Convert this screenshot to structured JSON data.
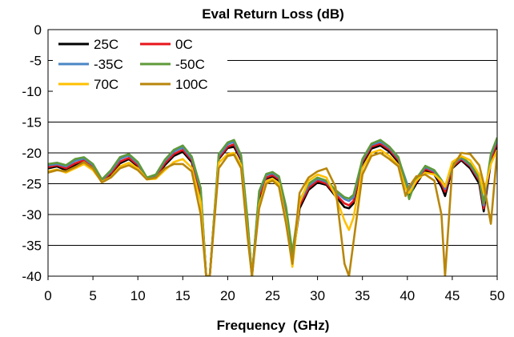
{
  "chart_data": {
    "type": "line",
    "title": "Eval Return Loss (dB)",
    "xlabel": "Frequency  (GHz)",
    "ylabel": "",
    "xlim": [
      0,
      50
    ],
    "ylim": [
      -40,
      0
    ],
    "xticks": [
      0,
      5,
      10,
      15,
      20,
      25,
      30,
      35,
      40,
      45,
      50
    ],
    "yticks": [
      0,
      -5,
      -10,
      -15,
      -20,
      -25,
      -30,
      -35,
      -40
    ],
    "grid": true,
    "legend_position": "top-left",
    "series": [
      {
        "name": "25C",
        "color": "#000000",
        "x": [
          0,
          1,
          2,
          3,
          4,
          5,
          6,
          7,
          8,
          9,
          10,
          11,
          12,
          13,
          14,
          15,
          16,
          17,
          17.6,
          18,
          19,
          20,
          20.7,
          21.5,
          22.2,
          22.7,
          23.5,
          24.3,
          25,
          25.7,
          26.5,
          27.2,
          28,
          29,
          30,
          31,
          32,
          33,
          33.5,
          34,
          35,
          36,
          37,
          38,
          39,
          39.8,
          40.2,
          41,
          42,
          43,
          43.8,
          44.2,
          45,
          46,
          47,
          48,
          48.5,
          49.3,
          50
        ],
        "y": [
          -22.5,
          -22.2,
          -22.8,
          -22.0,
          -21.5,
          -22.5,
          -24.6,
          -23.6,
          -21.7,
          -21.0,
          -22.2,
          -24.2,
          -24.0,
          -22.0,
          -20.5,
          -19.8,
          -21.5,
          -27.0,
          -40.0,
          -40.0,
          -21.0,
          -19.2,
          -19.0,
          -21.2,
          -32.0,
          -40.0,
          -27.5,
          -24.2,
          -23.8,
          -24.5,
          -30.0,
          -37.5,
          -29.0,
          -26.0,
          -24.8,
          -25.2,
          -27.0,
          -28.8,
          -29.0,
          -28.2,
          -21.8,
          -19.3,
          -18.8,
          -19.8,
          -21.5,
          -25.0,
          -27.0,
          -25.0,
          -22.8,
          -23.5,
          -25.5,
          -27.0,
          -22.5,
          -21.2,
          -22.5,
          -25.0,
          -29.5,
          -21.5,
          -18.8
        ]
      },
      {
        "name": "0C",
        "color": "#e8141c",
        "x": [
          0,
          1,
          2,
          3,
          4,
          5,
          6,
          7,
          8,
          9,
          10,
          11,
          12,
          13,
          14,
          15,
          16,
          17,
          17.6,
          18,
          19,
          20,
          20.7,
          21.5,
          22.2,
          22.7,
          23.5,
          24.3,
          25,
          25.7,
          26.5,
          27.2,
          28,
          29,
          30,
          31,
          32,
          33,
          33.5,
          34,
          35,
          36,
          37,
          38,
          39,
          39.8,
          40.2,
          41,
          42,
          43,
          43.8,
          44.2,
          45,
          46,
          47,
          48,
          48.5,
          49.3,
          50
        ],
        "y": [
          -22.3,
          -22.0,
          -22.5,
          -21.7,
          -21.2,
          -22.3,
          -24.5,
          -23.3,
          -21.4,
          -20.8,
          -22.0,
          -24.2,
          -23.8,
          -21.7,
          -20.2,
          -19.5,
          -21.2,
          -26.5,
          -40.0,
          -40.0,
          -20.8,
          -19.0,
          -18.6,
          -21.0,
          -31.5,
          -40.0,
          -27.0,
          -24.0,
          -23.6,
          -24.3,
          -29.5,
          -37.0,
          -28.5,
          -25.7,
          -24.5,
          -25.0,
          -26.7,
          -28.2,
          -28.5,
          -27.8,
          -21.5,
          -19.0,
          -18.5,
          -19.5,
          -21.2,
          -24.6,
          -26.5,
          -24.7,
          -22.6,
          -23.2,
          -25.0,
          -26.3,
          -22.3,
          -21.0,
          -22.2,
          -24.5,
          -29.0,
          -21.0,
          -18.3
        ]
      },
      {
        "name": "-35C",
        "color": "#4a86c5",
        "x": [
          0,
          1,
          2,
          3,
          4,
          5,
          6,
          7,
          8,
          9,
          10,
          11,
          12,
          13,
          14,
          15,
          16,
          17,
          17.6,
          18,
          19,
          20,
          20.7,
          21.5,
          22.2,
          22.7,
          23.5,
          24.3,
          25,
          25.7,
          26.5,
          27.2,
          28,
          29,
          30,
          31,
          32,
          33,
          33.5,
          34,
          35,
          36,
          37,
          38,
          39,
          39.8,
          40.2,
          41,
          42,
          43,
          43.8,
          44.2,
          45,
          46,
          47,
          48,
          48.5,
          49.3,
          50
        ],
        "y": [
          -22.0,
          -21.8,
          -22.2,
          -21.3,
          -20.9,
          -22.0,
          -24.4,
          -23.0,
          -21.0,
          -20.4,
          -21.7,
          -24.1,
          -23.6,
          -21.3,
          -19.8,
          -19.1,
          -20.9,
          -26.0,
          -40.0,
          -40.0,
          -20.5,
          -18.6,
          -18.2,
          -20.7,
          -31.0,
          -40.0,
          -26.5,
          -23.6,
          -23.3,
          -24.0,
          -29.0,
          -36.5,
          -28.0,
          -25.3,
          -24.2,
          -24.7,
          -26.3,
          -27.5,
          -27.8,
          -27.2,
          -21.2,
          -18.7,
          -18.2,
          -19.2,
          -20.9,
          -24.3,
          -26.0,
          -24.4,
          -22.3,
          -23.0,
          -24.6,
          -25.8,
          -22.0,
          -20.8,
          -22.0,
          -24.2,
          -28.5,
          -20.5,
          -17.8
        ]
      },
      {
        "name": "-50C",
        "color": "#5f9a3a",
        "x": [
          0,
          1,
          2,
          3,
          4,
          5,
          6,
          7,
          8,
          9,
          10,
          11,
          12,
          13,
          14,
          15,
          16,
          17,
          17.6,
          18,
          19,
          20,
          20.7,
          21.5,
          22.2,
          22.7,
          23.5,
          24.3,
          25,
          25.7,
          26.5,
          27.2,
          28,
          29,
          30,
          31,
          32,
          33,
          33.5,
          34,
          35,
          36,
          37,
          38,
          39,
          39.8,
          40.2,
          41,
          42,
          43,
          43.8,
          44.2,
          45,
          46,
          47,
          48,
          48.5,
          49.3,
          50
        ],
        "y": [
          -21.8,
          -21.6,
          -22.0,
          -21.0,
          -20.7,
          -21.8,
          -24.3,
          -22.8,
          -20.7,
          -20.2,
          -21.5,
          -24.0,
          -23.5,
          -21.1,
          -19.5,
          -18.8,
          -20.6,
          -25.7,
          -40.0,
          -40.0,
          -20.2,
          -18.3,
          -17.9,
          -20.4,
          -30.7,
          -40.0,
          -26.2,
          -23.4,
          -23.1,
          -23.8,
          -28.7,
          -36.2,
          -27.7,
          -25.0,
          -24.0,
          -24.5,
          -26.0,
          -27.2,
          -27.4,
          -26.8,
          -21.0,
          -18.5,
          -17.9,
          -19.0,
          -20.7,
          -24.7,
          -27.5,
          -24.2,
          -22.1,
          -22.8,
          -24.4,
          -25.5,
          -21.8,
          -20.6,
          -21.8,
          -24.0,
          -28.2,
          -20.2,
          -17.5
        ]
      },
      {
        "name": "70C",
        "color": "#ffc000",
        "x": [
          0,
          1,
          2,
          3,
          4,
          5,
          6,
          7,
          8,
          9,
          10,
          11,
          12,
          13,
          14,
          15,
          16,
          17,
          17.6,
          18,
          19,
          20,
          20.7,
          21.5,
          22.2,
          22.7,
          23.5,
          24.3,
          25,
          25.7,
          26.5,
          27.2,
          28,
          29,
          30,
          31,
          32,
          33,
          33.5,
          34,
          35,
          36,
          37,
          38,
          39,
          39.8,
          40.2,
          41,
          42,
          43,
          43.8,
          44.2,
          45,
          46,
          47,
          48,
          48.5,
          49.3,
          50
        ],
        "y": [
          -23.0,
          -22.7,
          -23.2,
          -22.5,
          -21.8,
          -22.8,
          -24.7,
          -23.9,
          -22.2,
          -21.6,
          -22.5,
          -24.3,
          -24.2,
          -22.8,
          -21.5,
          -21.0,
          -22.4,
          -28.0,
          -40.0,
          -40.0,
          -21.6,
          -20.2,
          -20.0,
          -22.0,
          -33.0,
          -40.0,
          -28.5,
          -24.6,
          -24.2,
          -25.0,
          -31.0,
          -38.5,
          -28.0,
          -24.5,
          -23.5,
          -24.0,
          -27.0,
          -31.0,
          -32.5,
          -30.5,
          -22.5,
          -20.0,
          -19.5,
          -20.5,
          -22.0,
          -25.8,
          -26.5,
          -24.5,
          -23.2,
          -23.5,
          -24.6,
          -25.5,
          -21.5,
          -20.5,
          -21.2,
          -23.5,
          -26.5,
          -21.8,
          -19.5
        ]
      },
      {
        "name": "100C",
        "color": "#b8860b",
        "x": [
          0,
          1,
          2,
          3,
          4,
          5,
          6,
          7,
          8,
          9,
          10,
          11,
          12,
          13,
          14,
          15,
          16,
          17,
          17.6,
          18,
          19,
          20,
          20.7,
          21.5,
          22.2,
          22.7,
          23.5,
          24.3,
          25,
          25.7,
          26.5,
          27.2,
          28,
          29,
          30,
          31,
          32,
          33,
          33.5,
          34,
          35,
          36,
          37,
          38,
          39,
          39.8,
          40.2,
          41,
          42,
          43,
          43.8,
          44.2,
          45,
          46,
          47,
          48,
          48.5,
          49.3,
          50
        ],
        "y": [
          -23.2,
          -22.8,
          -23.0,
          -22.3,
          -21.5,
          -22.5,
          -24.8,
          -24.0,
          -22.5,
          -22.0,
          -22.8,
          -24.3,
          -24.0,
          -22.5,
          -21.8,
          -21.8,
          -23.0,
          -30.0,
          -40.0,
          -40.0,
          -22.5,
          -20.5,
          -20.3,
          -22.5,
          -33.5,
          -40.0,
          -29.0,
          -25.0,
          -24.5,
          -25.5,
          -31.5,
          -38.0,
          -26.5,
          -24.0,
          -23.0,
          -22.5,
          -25.5,
          -38.0,
          -40.0,
          -34.5,
          -23.5,
          -20.5,
          -20.0,
          -21.0,
          -22.2,
          -27.0,
          -25.5,
          -23.8,
          -23.5,
          -24.5,
          -30.0,
          -40.0,
          -22.5,
          -20.0,
          -20.2,
          -22.0,
          -25.0,
          -31.5,
          -19.8
        ]
      }
    ]
  }
}
